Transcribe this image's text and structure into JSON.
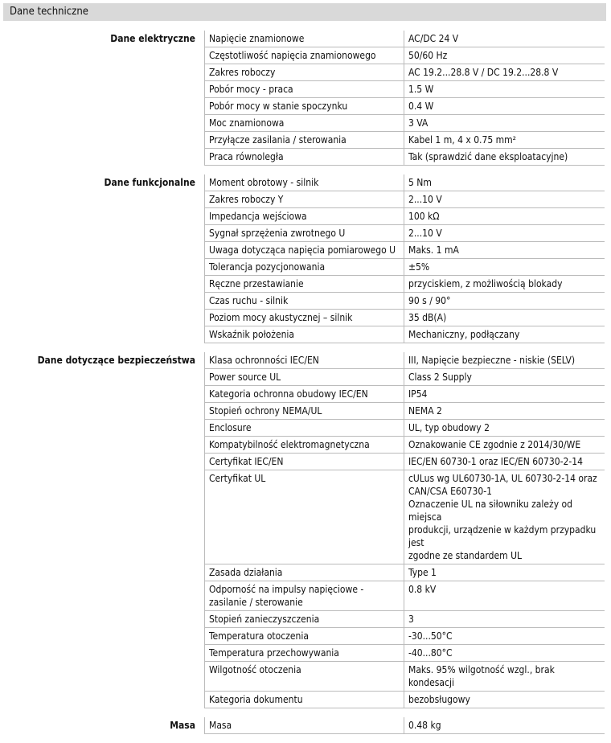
{
  "header": {
    "title": "Dane techniczne"
  },
  "sections": [
    {
      "label": "Dane elektryczne",
      "rows": [
        [
          "Napięcie znamionowe",
          [
            "AC/DC 24 V"
          ]
        ],
        [
          "Częstotliwość napięcia znamionowego",
          [
            "50/60 Hz"
          ]
        ],
        [
          "Zakres roboczy",
          [
            "AC 19.2...28.8 V / DC 19.2...28.8 V"
          ]
        ],
        [
          "Pobór mocy - praca",
          [
            "1.5 W"
          ]
        ],
        [
          "Pobór mocy w stanie spoczynku",
          [
            "0.4 W"
          ]
        ],
        [
          "Moc znamionowa",
          [
            "3 VA"
          ]
        ],
        [
          "Przyłącze zasilania / sterowania",
          [
            "Kabel 1 m, 4 x 0.75 mm²"
          ]
        ],
        [
          "Praca równoległa",
          [
            "Tak (sprawdzić dane eksploatacyjne)"
          ]
        ]
      ]
    },
    {
      "label": "Dane funkcjonalne",
      "rows": [
        [
          "Moment obrotowy - silnik",
          [
            "5 Nm"
          ]
        ],
        [
          "Zakres roboczy Y",
          [
            "2...10 V"
          ]
        ],
        [
          "Impedancja wejściowa",
          [
            "100 kΩ"
          ]
        ],
        [
          "Sygnał sprzężenia zwrotnego U",
          [
            "2...10 V"
          ]
        ],
        [
          "Uwaga dotycząca napięcia pomiarowego U",
          [
            "Maks. 1 mA"
          ]
        ],
        [
          "Tolerancja pozycjonowania",
          [
            "±5%"
          ]
        ],
        [
          "Ręczne przestawianie",
          [
            "przyciskiem, z możliwością blokady"
          ]
        ],
        [
          "Czas ruchu - silnik",
          [
            "90 s / 90°"
          ]
        ],
        [
          "Poziom mocy akustycznej – silnik",
          [
            "35 dB(A)"
          ]
        ],
        [
          "Wskaźnik położenia",
          [
            "Mechaniczny, podłączany"
          ]
        ]
      ]
    },
    {
      "label": "Dane dotyczące bezpieczeństwa",
      "rows": [
        [
          "Klasa ochronności IEC/EN",
          [
            "III, Napięcie bezpieczne - niskie (SELV)"
          ]
        ],
        [
          "Power source UL",
          [
            "Class 2 Supply"
          ]
        ],
        [
          "Kategoria ochronna obudowy IEC/EN",
          [
            "IP54"
          ]
        ],
        [
          "Stopień ochrony NEMA/UL",
          [
            "NEMA 2"
          ]
        ],
        [
          "Enclosure",
          [
            "UL, typ obudowy 2"
          ]
        ],
        [
          "Kompatybilność elektromagnetyczna",
          [
            "Oznakowanie CE zgodnie z 2014/30/WE"
          ]
        ],
        [
          "Certyfikat IEC/EN",
          [
            "IEC/EN 60730-1 oraz IEC/EN 60730-2-14"
          ]
        ],
        [
          "Certyfikat UL",
          [
            "cULus wg UL60730-1A, UL 60730-2-14 oraz",
            "CAN/CSA E60730-1",
            "Oznaczenie UL na siłowniku zależy od miejsca",
            "produkcji, urządzenie w każdym przypadku jest",
            "zgodne ze standardem UL"
          ]
        ],
        [
          "Zasada działania",
          [
            "Type 1"
          ]
        ],
        [
          "Odporność na impulsy napięciowe - zasilanie / sterowanie",
          [
            "0.8 kV"
          ]
        ],
        [
          "Stopień zanieczyszczenia",
          [
            "3"
          ]
        ],
        [
          "Temperatura otoczenia",
          [
            "-30...50°C"
          ]
        ],
        [
          "Temperatura przechowywania",
          [
            "-40...80°C"
          ]
        ],
        [
          "Wilgotność otoczenia",
          [
            "Maks. 95% wilgotność wzgl., brak kondesacji"
          ]
        ],
        [
          "Kategoria dokumentu",
          [
            "bezobsługowy"
          ]
        ]
      ]
    },
    {
      "label": "Masa",
      "rows": [
        [
          "Masa",
          [
            "0.48 kg"
          ]
        ]
      ]
    }
  ]
}
